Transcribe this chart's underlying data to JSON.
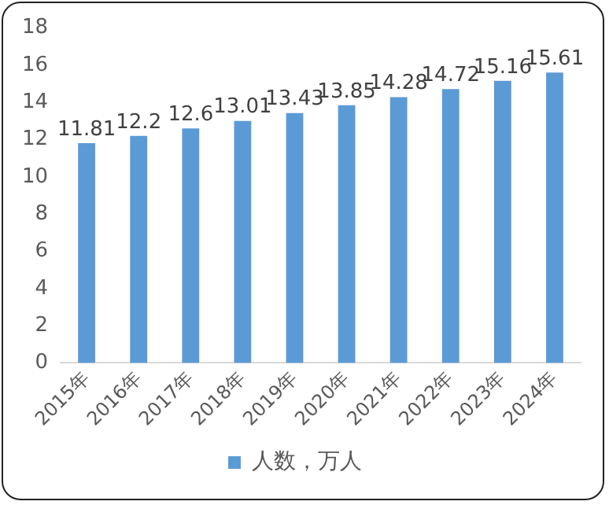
{
  "chart_data": {
    "type": "bar",
    "categories": [
      "2015年",
      "2016年",
      "2017年",
      "2018年",
      "2019年",
      "2020年",
      "2021年",
      "2022年",
      "2023年",
      "2024年"
    ],
    "series": [
      {
        "name": "人数，万人",
        "color": "#5b9bd5",
        "values": [
          11.81,
          12.2,
          12.6,
          13.01,
          13.43,
          13.85,
          14.28,
          14.72,
          15.16,
          15.61
        ]
      }
    ],
    "ylim": [
      0,
      18
    ],
    "yticks": [
      0,
      2,
      4,
      6,
      8,
      10,
      12,
      14,
      16,
      18
    ],
    "grid": false,
    "legend": "bottom",
    "data_labels": true
  }
}
